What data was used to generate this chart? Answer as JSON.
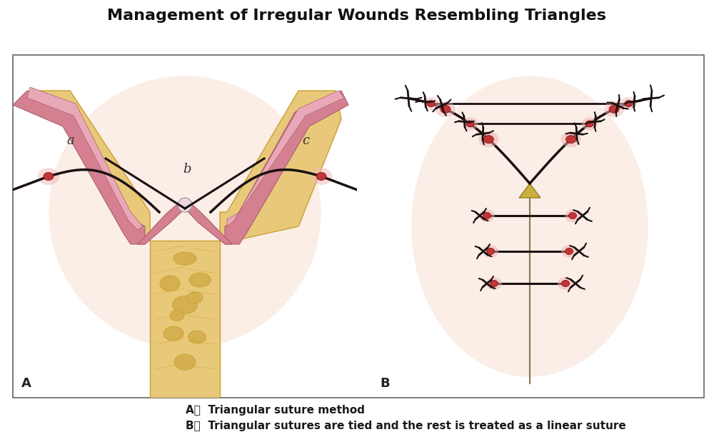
{
  "title": "Management of Irregular Wounds Resembling Triangles",
  "title_fontsize": 16,
  "title_fontweight": "bold",
  "caption_a": "A，  Triangular suture method",
  "caption_b": "B，  Triangular sutures are tied and the rest is treated as a linear suture",
  "caption_fontsize": 11,
  "caption_fontweight": "bold",
  "bg_color": "#ffffff",
  "panel_bg": "#ffffff",
  "box_color": "#666666",
  "skin_yellow": "#e8c97a",
  "skin_yellow_dark": "#c8a030",
  "skin_pink_outer": "#d48090",
  "skin_pink_inner": "#e8a8b8",
  "skin_light_bg": "#fdf0e8",
  "suture_color": "#1a1010",
  "wound_red": "#c03535",
  "wound_glow": "#f0b0b0",
  "vessel_tan": "#9b8355",
  "tan_bg": "#f5e8d0",
  "yellow_tri": "#d4bc50"
}
